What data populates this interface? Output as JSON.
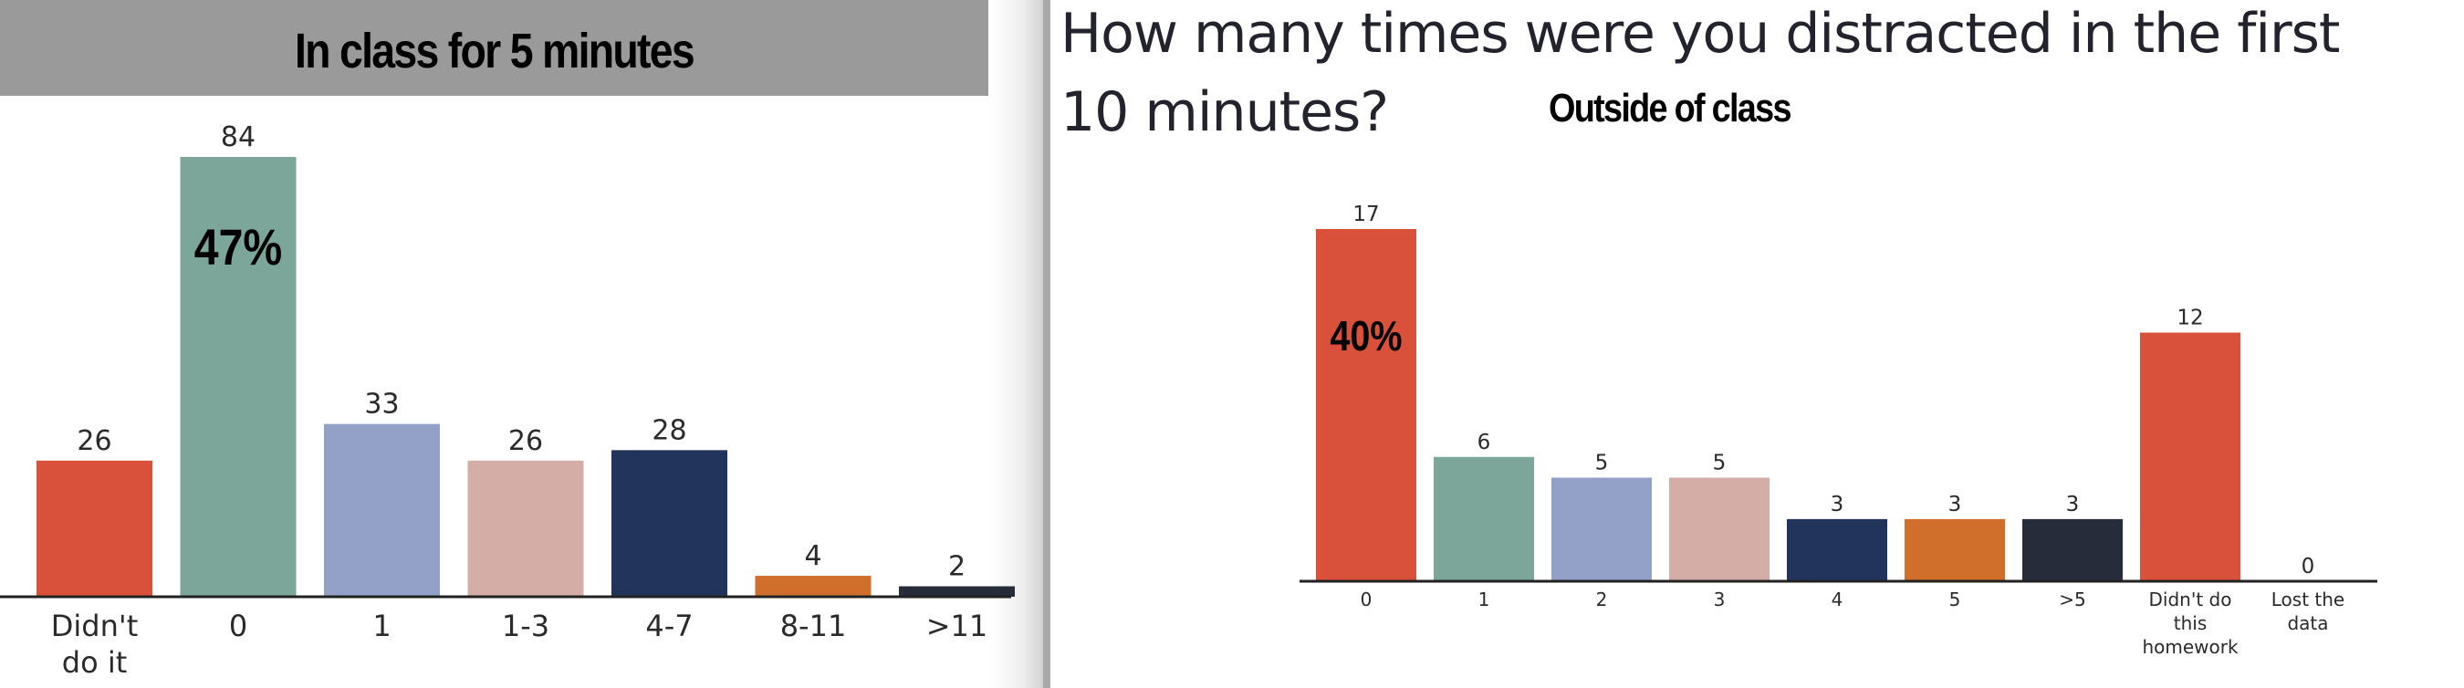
{
  "left_panel": {
    "title": "In class for 5 minutes"
  },
  "right_panel": {
    "question_line1": "How many times were you distracted in the first",
    "question_line2": "10 minutes?",
    "subtitle": "Outside of class"
  },
  "colors": {
    "red": "#d9513a",
    "teal": "#7ca69a",
    "lavender": "#93a1c9",
    "pink": "#d4ada7",
    "navy": "#22345c",
    "orange": "#d06e2c",
    "charcoal": "#272c3a"
  },
  "chart_data": [
    {
      "type": "bar",
      "title": "In class for 5 minutes",
      "categories": [
        [
          "Didn't",
          "do it"
        ],
        [
          "0"
        ],
        [
          "1"
        ],
        [
          "1-3"
        ],
        [
          "4-7"
        ],
        [
          "8-11"
        ],
        [
          ">11"
        ]
      ],
      "values": [
        26,
        84,
        33,
        26,
        28,
        4,
        2
      ],
      "bar_colors": [
        "#d9513a",
        "#7ca69a",
        "#93a1c9",
        "#d4ada7",
        "#22345c",
        "#d06e2c",
        "#272c3a"
      ],
      "annotations": [
        {
          "category_index": 1,
          "text": "47%"
        }
      ],
      "ylim": [
        0,
        84
      ],
      "grid": false
    },
    {
      "type": "bar",
      "title": "How many times were you distracted in the first 10 minutes?",
      "subtitle": "Outside of class",
      "categories": [
        [
          "0"
        ],
        [
          "1"
        ],
        [
          "2"
        ],
        [
          "3"
        ],
        [
          "4"
        ],
        [
          "5"
        ],
        [
          ">5"
        ],
        [
          "Didn't do",
          "this",
          "homework"
        ],
        [
          "Lost the",
          "data"
        ]
      ],
      "values": [
        17,
        6,
        5,
        5,
        3,
        3,
        3,
        12,
        0
      ],
      "bar_colors": [
        "#d9513a",
        "#7ca69a",
        "#93a1c9",
        "#d4ada7",
        "#22345c",
        "#d06e2c",
        "#272c3a",
        "#d9513a",
        "#d9513a"
      ],
      "annotations": [
        {
          "category_index": 0,
          "text": "40%"
        }
      ],
      "ylim": [
        0,
        17
      ],
      "grid": false
    }
  ]
}
